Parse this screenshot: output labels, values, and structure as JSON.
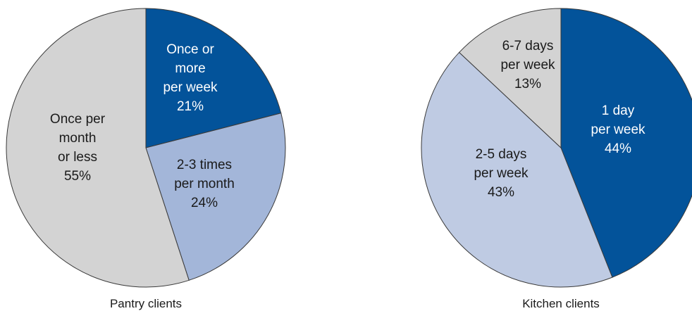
{
  "chart_data": [
    {
      "type": "pie",
      "caption": "Pantry clients",
      "slices": [
        {
          "label_lines": [
            "Once or",
            "more",
            "per week"
          ],
          "value": 21,
          "value_label": "21%",
          "color": "#03539a",
          "text_color": "#ffffff"
        },
        {
          "label_lines": [
            "2-3 times",
            "per month"
          ],
          "value": 24,
          "value_label": "24%",
          "color": "#a3b6d9",
          "text_color": "#1a1a1a"
        },
        {
          "label_lines": [
            "Once per",
            "month",
            "or less"
          ],
          "value": 55,
          "value_label": "55%",
          "color": "#d3d3d3",
          "text_color": "#1a1a1a"
        }
      ]
    },
    {
      "type": "pie",
      "caption": "Kitchen clients",
      "slices": [
        {
          "label_lines": [
            "1 day",
            "per week"
          ],
          "value": 44,
          "value_label": "44%",
          "color": "#03539a",
          "text_color": "#ffffff"
        },
        {
          "label_lines": [
            "2-5 days",
            "per week"
          ],
          "value": 43,
          "value_label": "43%",
          "color": "#bfcbe3",
          "text_color": "#1a1a1a"
        },
        {
          "label_lines": [
            "6-7 days",
            "per week"
          ],
          "value": 13,
          "value_label": "13%",
          "color": "#d3d3d3",
          "text_color": "#1a1a1a"
        }
      ]
    }
  ]
}
